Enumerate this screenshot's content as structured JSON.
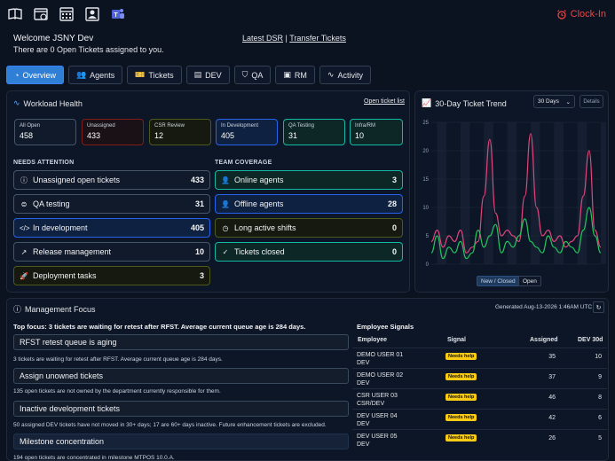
{
  "header": {
    "icons": [
      "book-icon",
      "calendar-user-icon",
      "calendar-grid-icon",
      "contact-card-icon",
      "teams-icon"
    ],
    "clock_in_label": "Clock-In",
    "accent": "#ef4444"
  },
  "welcome": {
    "title": "Welcome JSNY Dev",
    "subtitle": "There are 0 Open Tickets assigned to you."
  },
  "links": {
    "latest_dsr": "Latest DSR",
    "separator": "|",
    "transfer": "Transfer Tickets"
  },
  "tabs": [
    {
      "label": "Overview",
      "icon": "gauge-icon",
      "active": true
    },
    {
      "label": "Agents",
      "icon": "users-icon",
      "active": false
    },
    {
      "label": "Tickets",
      "icon": "ticket-icon",
      "active": false
    },
    {
      "label": "DEV",
      "icon": "document-icon",
      "active": false
    },
    {
      "label": "QA",
      "icon": "shield-icon",
      "active": false
    },
    {
      "label": "RM",
      "icon": "box-icon",
      "active": false
    },
    {
      "label": "Activity",
      "icon": "pulse-icon",
      "active": false
    }
  ],
  "workload": {
    "title": "Workload Health",
    "link": "Open ticket list",
    "kpis": [
      {
        "label": "All Open",
        "value": "458"
      },
      {
        "label": "Unassigned",
        "value": "433"
      },
      {
        "label": "CSR Review",
        "value": "12"
      },
      {
        "label": "In Development",
        "value": "405"
      },
      {
        "label": "QA Testing",
        "value": "31"
      },
      {
        "label": "Infra/RM",
        "value": "10"
      }
    ],
    "needs_attention_label": "NEEDS ATTENTION",
    "team_coverage_label": "TEAM COVERAGE",
    "needs_attention": [
      {
        "label": "Unassigned open tickets",
        "value": "433",
        "icon": "info-icon"
      },
      {
        "label": "QA testing",
        "value": "31",
        "icon": "qa-icon"
      },
      {
        "label": "In development",
        "value": "405",
        "icon": "code-icon"
      },
      {
        "label": "Release management",
        "value": "10",
        "icon": "external-icon"
      },
      {
        "label": "Deployment tasks",
        "value": "3",
        "icon": "rocket-icon"
      }
    ],
    "team_coverage": [
      {
        "label": "Online agents",
        "value": "3",
        "icon": "user-check-icon"
      },
      {
        "label": "Offline agents",
        "value": "28",
        "icon": "user-off-icon"
      },
      {
        "label": "Long active shifts",
        "value": "0",
        "icon": "clock-icon"
      },
      {
        "label": "Tickets closed",
        "value": "0",
        "icon": "check-circle-icon"
      }
    ]
  },
  "trend": {
    "title": "30-Day Ticket Trend",
    "range_select": "30 Days",
    "details_label": "Details",
    "toggle_a": "New / Closed",
    "toggle_b": "Open"
  },
  "chart_data": {
    "type": "line",
    "title": "30-Day Ticket Trend",
    "ylim": [
      0,
      25
    ],
    "yticks": [
      0,
      5,
      10,
      15,
      20,
      25
    ],
    "grid": true,
    "x": [
      1,
      2,
      3,
      4,
      5,
      6,
      7,
      8,
      9,
      10,
      11,
      12,
      13,
      14,
      15,
      16,
      17,
      18,
      19,
      20,
      21,
      22,
      23,
      24,
      25,
      26,
      27,
      28,
      29,
      30
    ],
    "series": [
      {
        "color": "#e0457b",
        "values": [
          4,
          6,
          3,
          5,
          4,
          6,
          2,
          3,
          4,
          12,
          22,
          9,
          5,
          6,
          5,
          4,
          12,
          23,
          10,
          5,
          6,
          4,
          5,
          3,
          4,
          5,
          12,
          20,
          6,
          3
        ]
      },
      {
        "color": "#22c55e",
        "values": [
          2,
          5,
          1,
          3,
          2,
          4,
          1,
          2,
          6,
          3,
          5,
          7,
          2,
          4,
          3,
          5,
          8,
          4,
          3,
          2,
          5,
          3,
          2,
          4,
          3,
          2,
          6,
          10,
          5,
          2
        ]
      }
    ]
  },
  "management": {
    "title": "Management Focus",
    "generated": "Generated Aug-13-2026 1:46AM UTC",
    "focus": "Top focus: 3 tickets are waiting for retest after RFST. Average current queue age is 284 days.",
    "items": [
      {
        "title": "RFST retest queue is aging",
        "desc": "3 tickets are waiting for retest after RFST. Average current queue age is 284 days."
      },
      {
        "title": "Assign unowned tickets",
        "desc": "135 open tickets are not owned by the department currently responsible for them."
      },
      {
        "title": "Inactive development tickets",
        "desc": "50 assigned DEV tickets have not moved in 30+ days; 17 are 60+ days inactive. Future enhancement tickets are excluded."
      },
      {
        "title": "Milestone concentration",
        "desc": "194 open tickets are concentrated in milestone MTPOS 10.0.A."
      }
    ]
  },
  "signals": {
    "title": "Employee Signals",
    "columns": [
      "Employee",
      "Signal",
      "Assigned",
      "DEV 30d"
    ],
    "rows": [
      {
        "name": "DEMO USER 01",
        "dept": "DEV",
        "signal": "Needs help",
        "assigned": "35",
        "dev30": "10"
      },
      {
        "name": "DEMO USER 02",
        "dept": "DEV",
        "signal": "Needs help",
        "assigned": "37",
        "dev30": "9"
      },
      {
        "name": "CSR USER 03",
        "dept": "CSR/DEV",
        "signal": "Needs help",
        "assigned": "46",
        "dev30": "8"
      },
      {
        "name": "DEV USER 04",
        "dept": "DEV",
        "signal": "Needs help",
        "assigned": "42",
        "dev30": "6"
      },
      {
        "name": "DEV USER 05",
        "dept": "DEV",
        "signal": "Needs help",
        "assigned": "26",
        "dev30": "5"
      }
    ]
  }
}
